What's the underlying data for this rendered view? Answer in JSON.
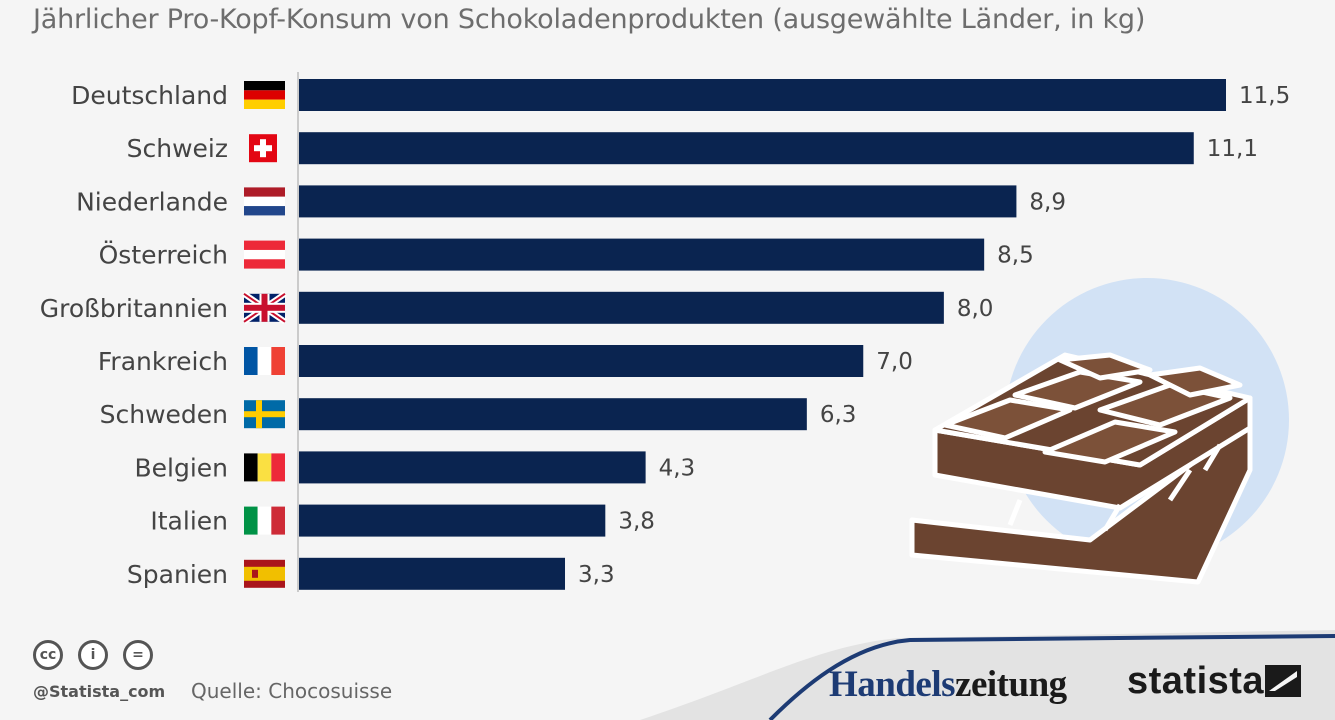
{
  "header": {
    "subtitle": "Jährlicher Pro-Kopf-Konsum von Schokoladenprodukten (ausgewählte Länder, in kg)"
  },
  "chart_data": {
    "type": "bar",
    "orientation": "horizontal",
    "title": "",
    "subtitle": "Jährlicher Pro-Kopf-Konsum von Schokoladenprodukten (ausgewählte Länder, in kg)",
    "xlabel": "",
    "ylabel": "",
    "xlim": [
      0,
      11.5
    ],
    "grid": false,
    "bar_color": "#0a2450",
    "categories": [
      "Deutschland",
      "Schweiz",
      "Niederlande",
      "Österreich",
      "Großbritannien",
      "Frankreich",
      "Schweden",
      "Belgien",
      "Italien",
      "Spanien"
    ],
    "values": [
      11.5,
      11.1,
      8.9,
      8.5,
      8.0,
      7.0,
      6.3,
      4.3,
      3.8,
      3.3
    ],
    "value_labels": [
      "11,5",
      "11,1",
      "8,9",
      "8,5",
      "8,0",
      "7,0",
      "6,3",
      "4,3",
      "3,8",
      "3,3"
    ],
    "flags": [
      "germany-flag-icon",
      "switzerland-flag-icon",
      "netherlands-flag-icon",
      "austria-flag-icon",
      "uk-flag-icon",
      "france-flag-icon",
      "sweden-flag-icon",
      "belgium-flag-icon",
      "italy-flag-icon",
      "spain-flag-icon"
    ]
  },
  "illustration": {
    "icon": "chocolate-bar-icon",
    "circle_color": "#d2e2f5",
    "chocolate_color": "#6b4430"
  },
  "footer": {
    "license_icons": [
      "cc-icon",
      "by-icon",
      "nd-icon"
    ],
    "license_glyphs": [
      "cc",
      "i",
      "="
    ],
    "handle": "@Statista_com",
    "source": "Quelle: Chocosuisse",
    "logo_handelszeitung_a": "Handels",
    "logo_handelszeitung_b": "zeitung",
    "logo_statista": "statista",
    "wave_color": "#1d3b74"
  }
}
